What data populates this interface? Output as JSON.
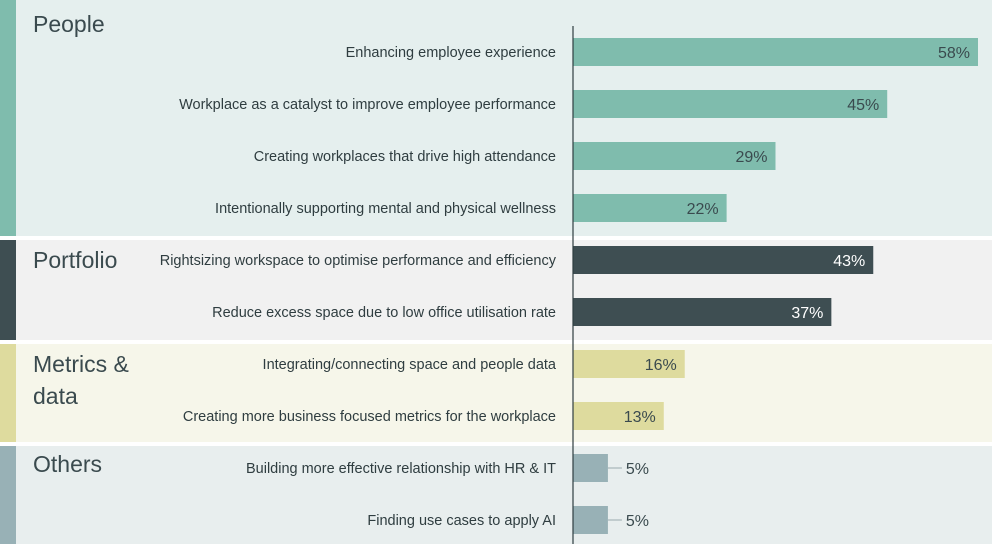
{
  "chart_data": {
    "type": "bar",
    "orientation": "horizontal",
    "xlim": [
      0,
      60
    ],
    "value_format": "percent",
    "groups": [
      {
        "name": "People",
        "color": "#7fbcad",
        "band_color": "#e5efee",
        "label_color": "#3a4a4e",
        "items": [
          {
            "label": "Enhancing employee experience",
            "value": 58
          },
          {
            "label": "Workplace as a catalyst to improve employee performance",
            "value": 45
          },
          {
            "label": "Creating workplaces that drive high attendance",
            "value": 29
          },
          {
            "label": "Intentionally supporting mental and physical wellness",
            "value": 22
          }
        ]
      },
      {
        "name": "Portfolio",
        "color": "#3e4e52",
        "band_color": "#f1f1f1",
        "label_color": "#ffffff",
        "items": [
          {
            "label": "Rightsizing workspace to optimise performance and efficiency",
            "value": 43
          },
          {
            "label": "Reduce excess space due to low office utilisation rate",
            "value": 37
          }
        ]
      },
      {
        "name": "Metrics & data",
        "color": "#dedb9e",
        "band_color": "#f6f6ea",
        "label_color": "#3a4a4e",
        "items": [
          {
            "label": "Integrating/connecting space and people data",
            "value": 16
          },
          {
            "label": "Creating more business focused metrics for the workplace",
            "value": 13
          }
        ]
      },
      {
        "name": "Others",
        "color": "#98b1b6",
        "band_color": "#e8eeee",
        "label_color": "#3a4a4e",
        "items": [
          {
            "label": "Building more effective relationship with HR & IT",
            "value": 5
          },
          {
            "label": "Finding use cases to apply AI",
            "value": 5
          }
        ]
      }
    ]
  }
}
